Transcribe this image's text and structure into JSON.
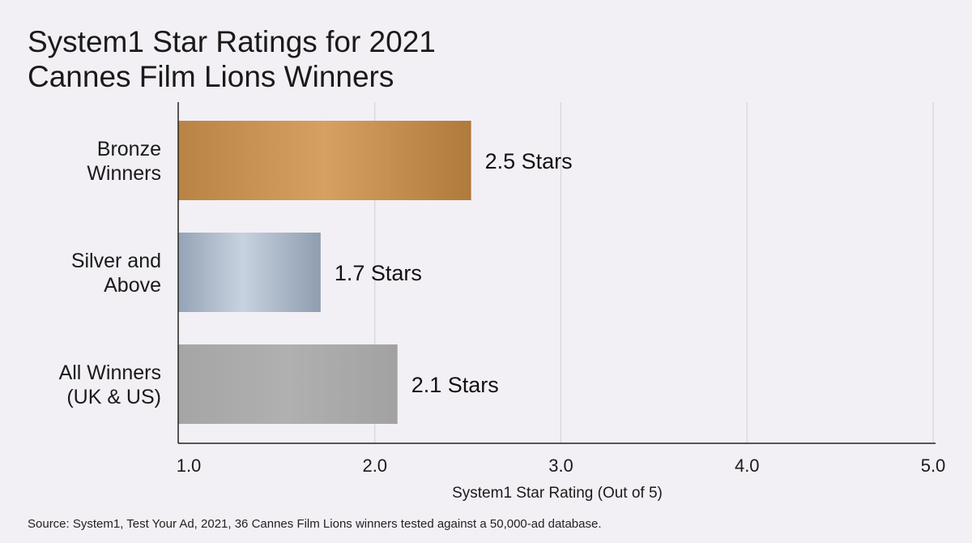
{
  "chart_data": {
    "type": "bar",
    "orientation": "horizontal",
    "title_lines": [
      "System1 Star Ratings for 2021",
      "Cannes Film Lions Winners"
    ],
    "categories": [
      [
        "Bronze",
        "Winners"
      ],
      [
        "Silver and",
        "Above"
      ],
      [
        "All Winners",
        "(UK & US)"
      ]
    ],
    "values": [
      2.5,
      1.7,
      2.1
    ],
    "value_labels": [
      "2.5 Stars",
      "1.7 Stars",
      "2.1 Stars"
    ],
    "xlabel": "System1 Star Rating (Out of 5)",
    "xlim": [
      1.0,
      5.0
    ],
    "xticks": [
      1.0,
      2.0,
      3.0,
      4.0,
      5.0
    ],
    "xtick_labels": [
      "1.0",
      "2.0",
      "3.0",
      "4.0",
      "5.0"
    ],
    "grid": true,
    "legend": "none",
    "colors": {
      "bronze": [
        "#b98345",
        "#d5a062",
        "#b07a3c"
      ],
      "silver": [
        "#95a3b5",
        "#c7d2df",
        "#8f9db0"
      ],
      "all": [
        "#a5a5a5",
        "#b0b0b0",
        "#a2a2a2"
      ]
    }
  },
  "source": "Source: System1, Test Your Ad, 2021, 36 Cannes Film Lions winners tested against a 50,000-ad database."
}
